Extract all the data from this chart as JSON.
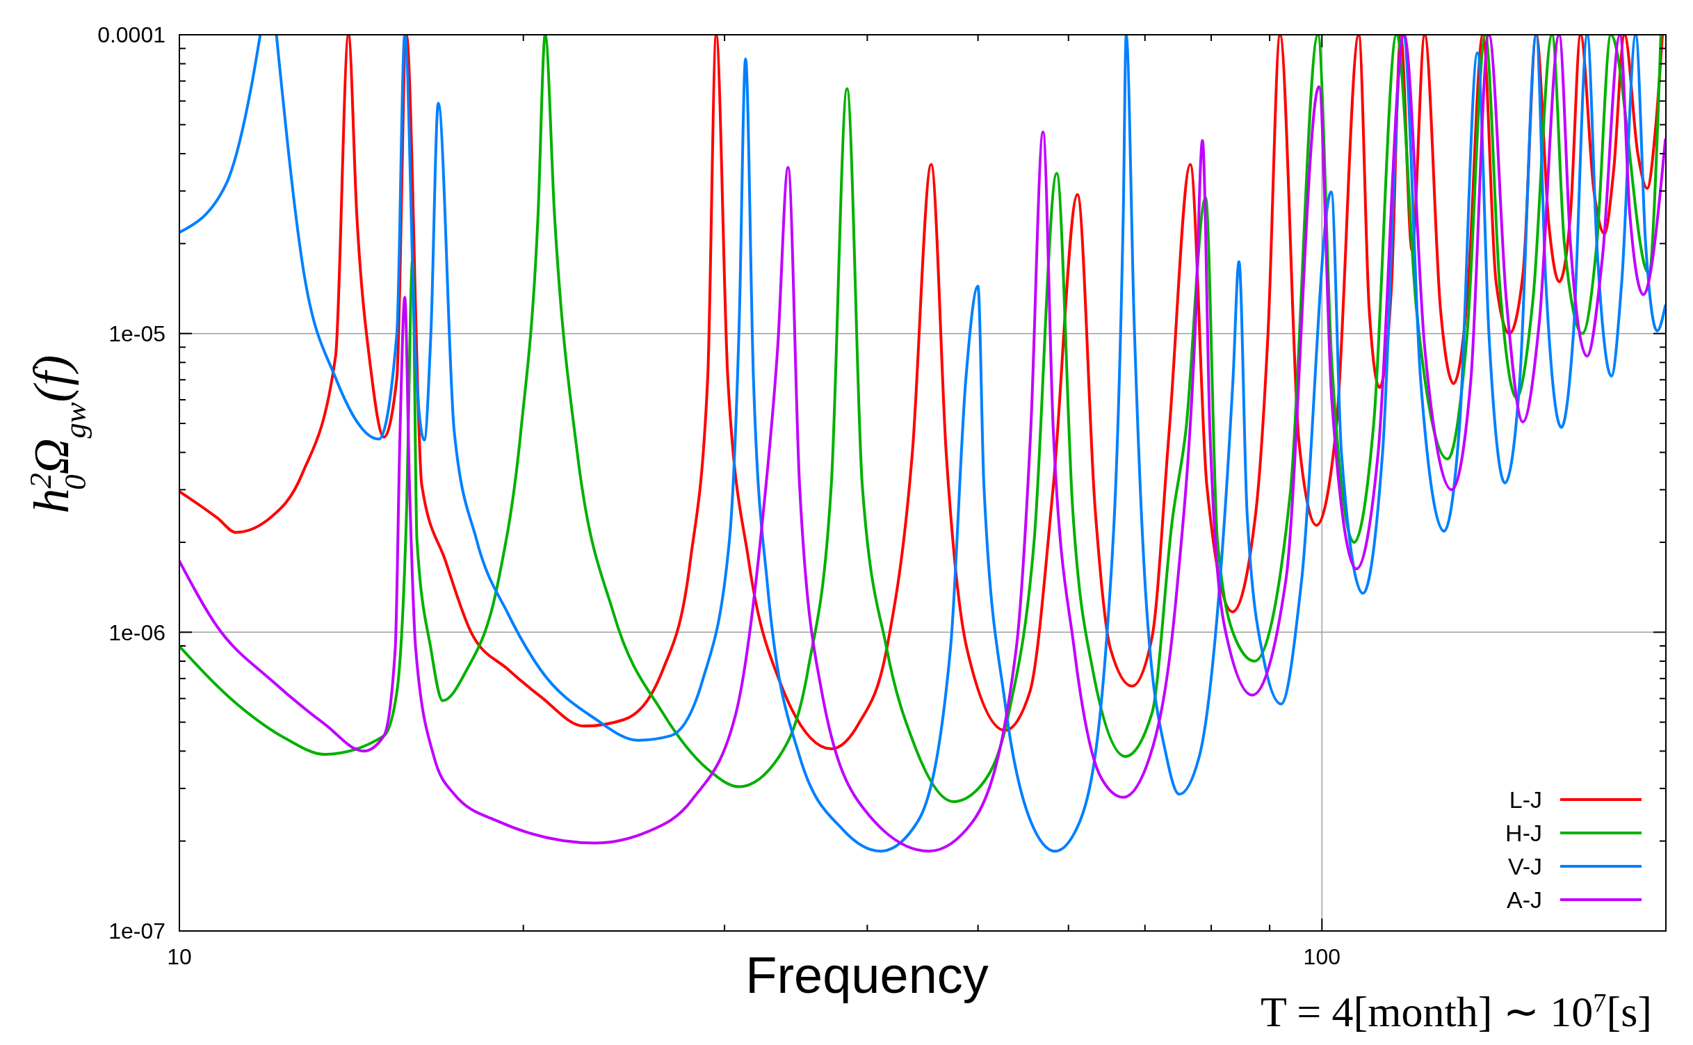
{
  "chart_data": {
    "type": "line",
    "xlabel": "Frequency",
    "ylabel": "h$^{2}$$_{0}$Ω$_{gw}$(f)",
    "annotations": [
      "T = 4[month] ∼ 10$^{7}$[s]"
    ],
    "log": "xy",
    "grid": true,
    "legend": "bottom right",
    "xlim": [
      10,
      200
    ],
    "ylim": [
      1e-07,
      0.0001
    ],
    "xticks": [
      10,
      {
        "value": 20,
        "label": null
      },
      {
        "value": 30,
        "label": null
      },
      {
        "value": 40,
        "label": null
      },
      {
        "value": 50,
        "label": null
      },
      {
        "value": 60,
        "label": null
      },
      {
        "value": 70,
        "label": null
      },
      {
        "value": 80,
        "label": null
      },
      {
        "value": 90,
        "label": null
      },
      100
    ],
    "yticks": [
      {
        "value": 1e-07,
        "label": "1e-07"
      },
      {
        "value": 2e-07,
        "label": null
      },
      {
        "value": 3e-07,
        "label": null
      },
      {
        "value": 4e-07,
        "label": null
      },
      {
        "value": 5e-07,
        "label": null
      },
      {
        "value": 6e-07,
        "label": null
      },
      {
        "value": 7e-07,
        "label": null
      },
      {
        "value": 8e-07,
        "label": null
      },
      {
        "value": 9e-07,
        "label": null
      },
      {
        "value": 1e-06,
        "label": "1e-06"
      },
      {
        "value": 2e-06,
        "label": null
      },
      {
        "value": 3e-06,
        "label": null
      },
      {
        "value": 4e-06,
        "label": null
      },
      {
        "value": 5e-06,
        "label": null
      },
      {
        "value": 6e-06,
        "label": null
      },
      {
        "value": 7e-06,
        "label": null
      },
      {
        "value": 8e-06,
        "label": null
      },
      {
        "value": 9e-06,
        "label": null
      },
      {
        "value": 1e-05,
        "label": "1e-05"
      },
      {
        "value": 2e-05,
        "label": null
      },
      {
        "value": 3e-05,
        "label": null
      },
      {
        "value": 4e-05,
        "label": null
      },
      {
        "value": 5e-05,
        "label": null
      },
      {
        "value": 6e-05,
        "label": null
      },
      {
        "value": 7e-05,
        "label": null
      },
      {
        "value": 8e-05,
        "label": null
      },
      {
        "value": 9e-05,
        "label": null
      },
      {
        "value": 0.0001,
        "label": "0.0001"
      }
    ],
    "series": [
      {
        "name": "L-J",
        "color": "#ff0000",
        "x": [
          10,
          10.8,
          11.2,
          12.0,
          12.8,
          13.7,
          14.06,
          14.3,
          14.7,
          15.1,
          15.5,
          15.8,
          16.3,
          17.1,
          18.0,
          19.4,
          20.7,
          22.6,
          24.5,
          26.5,
          28.0,
          29.0,
          29.5,
          30.2,
          31.5,
          33.5,
          37.2,
          39.3,
          41.6,
          43.8,
          45.5,
          46.9,
          48.9,
          52.8,
          55.5,
          58.2,
          61.1,
          63.3,
          65.3,
          68.2,
          71.0,
          73.5,
          76.7,
          79.3,
          83.5,
          87.5,
          89.7,
          91.9,
          95.5,
          98.9,
          103,
          107.7,
          110,
          112.3,
          115,
          117.2,
          119.9,
          123,
          127,
          130.4,
          134,
          138.3,
          142,
          145.9,
          150,
          154,
          158,
          161.3,
          165,
          168.4,
          173,
          176.7,
          180,
          184,
          189,
          192.6,
          196,
          198.6
        ],
        "values": [
          2.96e-06,
          2.41e-06,
          2.16e-06,
          2.41e-06,
          3.37e-06,
          8.4e-06,
          0.0001,
          2.47e-05,
          7.7e-06,
          4.5e-06,
          7.1e-06,
          0.0001,
          3.1e-06,
          1.73e-06,
          1e-06,
          7.5e-07,
          6.1e-07,
          4.85e-07,
          5.1e-07,
          7.5e-07,
          1.73e-06,
          7.1e-06,
          0.0001,
          7.1e-06,
          1.73e-06,
          6.9e-07,
          4.07e-07,
          4.93e-07,
          8.8e-07,
          3.97e-06,
          3.68e-05,
          3.97e-06,
          8.8e-07,
          4.69e-07,
          6.3e-07,
          3.1e-06,
          2.92e-05,
          2.62e-06,
          8.8e-07,
          6.6e-07,
          9.6e-07,
          4.7e-06,
          3.68e-05,
          3.1e-06,
          1.17e-06,
          2.5e-06,
          1e-05,
          0.0001,
          4.3e-06,
          2.28e-06,
          5e-06,
          0.0001,
          1.2e-05,
          6.6e-06,
          1.4e-05,
          0.0001,
          1.9e-05,
          0.0001,
          1.2e-05,
          6.8e-06,
          1.3e-05,
          0.0001,
          1.5e-05,
          1e-05,
          1.6e-05,
          0.0001,
          2.3e-05,
          1.49e-05,
          2.5e-05,
          0.0001,
          3e-05,
          2.16e-05,
          3.5e-05,
          0.0001,
          4e-05,
          3.06e-05,
          5e-05,
          0.0001
        ]
      },
      {
        "name": "H-J",
        "color": "#00b000",
        "x": [
          10,
          11.2,
          12.4,
          13.4,
          15.1,
          15.5,
          15.8,
          16.0,
          16.14,
          16.6,
          17.0,
          17.8,
          19.0,
          19.9,
          20.6,
          20.9,
          21.3,
          22.3,
          24.0,
          26.5,
          29.0,
          30.9,
          33.5,
          35.5,
          37.2,
          38.4,
          39.6,
          41.6,
          44,
          47.6,
          50.0,
          53.2,
          56,
          58.6,
          60.5,
          63,
          67.3,
          71,
          74,
          76,
          79.1,
          81,
          84,
          87.3,
          93.8,
          99.2,
          102,
          106.7,
          111,
          116.2,
          121,
          128.8,
          134,
          139,
          143,
          148,
          153,
          159,
          163,
          169,
          174,
          179,
          193.1,
          198
        ],
        "values": [
          8.97e-07,
          5.8e-07,
          4.4e-07,
          3.9e-07,
          4.5e-07,
          6.3e-07,
          2.41e-06,
          1.77e-05,
          2.04e-06,
          8.8e-07,
          5.9e-07,
          7.35e-07,
          1.46e-06,
          4.7e-06,
          2.47e-05,
          0.0001,
          2.47e-05,
          3.97e-06,
          1.15e-06,
          5.36e-07,
          3.48e-07,
          3.04e-07,
          3.84e-07,
          7.5e-07,
          3.1e-06,
          6.6e-05,
          3.1e-06,
          8.8e-07,
          4.18e-07,
          2.71e-07,
          2.99e-07,
          5.36e-07,
          2.04e-06,
          3.44e-05,
          2.62e-06,
          7.5e-07,
          3.84e-07,
          5.36e-07,
          2.41e-06,
          4.7e-06,
          2.85e-05,
          2.04e-06,
          9.5e-07,
          8e-07,
          2.9e-06,
          0.0001,
          8e-06,
          2e-06,
          5e-06,
          0.0001,
          1.2e-05,
          3.8e-06,
          1e-05,
          0.0001,
          1.5e-05,
          6.1e-06,
          1.3e-05,
          0.0001,
          2e-05,
          1e-05,
          2e-05,
          0.0001,
          1.6e-05,
          0.0001
        ]
      },
      {
        "name": "V-J",
        "color": "#0080ff",
        "x": [
          10,
          10.99,
          11.56,
          11.77,
          11.95,
          12.16,
          12.84,
          13.7,
          14.95,
          15.5,
          15.75,
          16.1,
          16.38,
          16.6,
          16.85,
          17.4,
          18.2,
          19.4,
          20.7,
          23.1,
          25.2,
          26.9,
          28.7,
          30.3,
          30.9,
          31.3,
          31.8,
          32.7,
          34.9,
          38.1,
          41.1,
          44.3,
          47.3,
          48.8,
          50,
          50.6,
          52.8,
          55.6,
          58.4,
          61.4,
          64.7,
          67,
          67.4,
          68.5,
          70.1,
          73.1,
          75.0,
          78.1,
          81.4,
          83.6,
          84.6,
          86,
          89,
          92.1,
          96,
          101.9,
          104,
          108.6,
          113,
          117.8,
          122,
          127.9,
          132,
          136.8,
          140,
          144.6,
          149,
          154,
          157,
          162,
          166,
          170.7,
          174,
          179.2,
          183,
          188.2,
          192,
          196.5,
          199.8
        ],
        "values": [
          2.18e-05,
          3.17e-05,
          6.7e-05,
          0.0001,
          null,
          0.0001,
          1.63e-05,
          7.1e-06,
          4.43e-06,
          1e-05,
          0.0001,
          8e-06,
          4.4e-06,
          1e-05,
          5.9e-05,
          4.7e-06,
          2.04e-06,
          1.15e-06,
          7.5e-07,
          5.14e-07,
          4.35e-07,
          4.5e-07,
          6.9e-07,
          2.04e-06,
          1.08e-05,
          8.3e-05,
          7.1e-06,
          1.46e-06,
          3.84e-07,
          2.18e-07,
          1.85e-07,
          2.33e-07,
          8.8e-07,
          7.1e-06,
          1.44e-05,
          3.1e-06,
          5.8e-07,
          2.33e-07,
          1.85e-07,
          2.33e-07,
          8.8e-07,
          2.47e-05,
          0.0001,
          1.08e-05,
          1.35e-06,
          3.84e-07,
          2.87e-07,
          3.84e-07,
          1.46e-06,
          7.1e-06,
          1.74e-05,
          2.5e-06,
          8e-07,
          5.75e-07,
          1.5e-06,
          2.98e-05,
          4e-06,
          1.35e-06,
          4e-06,
          0.0001,
          7e-06,
          2.18e-06,
          5e-06,
          8.7e-05,
          1e-05,
          3.16e-06,
          7e-06,
          0.0001,
          1.5e-05,
          4.85e-06,
          1e-05,
          0.0001,
          2e-05,
          7.2e-06,
          1.5e-05,
          0.0001,
          2e-05,
          1.02e-05,
          1.24e-05
        ]
      },
      {
        "name": "A-J",
        "color": "#c000ff",
        "x": [
          10,
          10.8,
          12.04,
          13.4,
          14.5,
          15.1,
          15.45,
          15.6,
          15.75,
          15.9,
          16.1,
          16.7,
          17.4,
          19.0,
          23.1,
          25.7,
          28.1,
          30.7,
          32.4,
          33.4,
          34.1,
          34.9,
          36.5,
          39.8,
          45.3,
          49.5,
          54,
          55.6,
          57.0,
          58.2,
          60.7,
          64.1,
          67,
          70.7,
          74.6,
          77.5,
          78.6,
          79.8,
          82.2,
          86.9,
          93,
          99.4,
          102,
          107.2,
          112,
          118,
          123,
          129.9,
          135,
          140,
          145,
          149.9,
          155,
          161.3,
          165,
          170.6,
          176,
          182.3,
          186,
          191.1,
          199.8
        ],
        "values": [
          1.73e-06,
          1.04e-06,
          6.9e-07,
          4.93e-07,
          4e-07,
          4.5e-07,
          8.8e-07,
          4.7e-06,
          1.32e-05,
          3.1e-06,
          8.8e-07,
          3.84e-07,
          2.87e-07,
          2.33e-07,
          1.97e-07,
          2.15e-07,
          2.75e-07,
          5.36e-07,
          2.41e-06,
          9.1e-06,
          3.6e-05,
          3.1e-06,
          6.3e-07,
          2.54e-07,
          1.85e-07,
          2.33e-07,
          8.8e-07,
          4.7e-06,
          4.73e-05,
          4.7e-06,
          8.8e-07,
          3.25e-07,
          2.8e-07,
          3.84e-07,
          1.35e-06,
          1.08e-05,
          4.43e-05,
          4.7e-06,
          1.04e-06,
          6.16e-07,
          1.5e-06,
          6.7e-05,
          6e-06,
          1.63e-06,
          4e-06,
          0.0001,
          9e-06,
          3e-06,
          7e-06,
          0.0001,
          1.3e-05,
          5.06e-06,
          1.1e-05,
          0.0001,
          2e-05,
          8.4e-06,
          1.8e-05,
          0.0001,
          2.5e-05,
          1.35e-05,
          4.46e-05
        ]
      }
    ]
  }
}
